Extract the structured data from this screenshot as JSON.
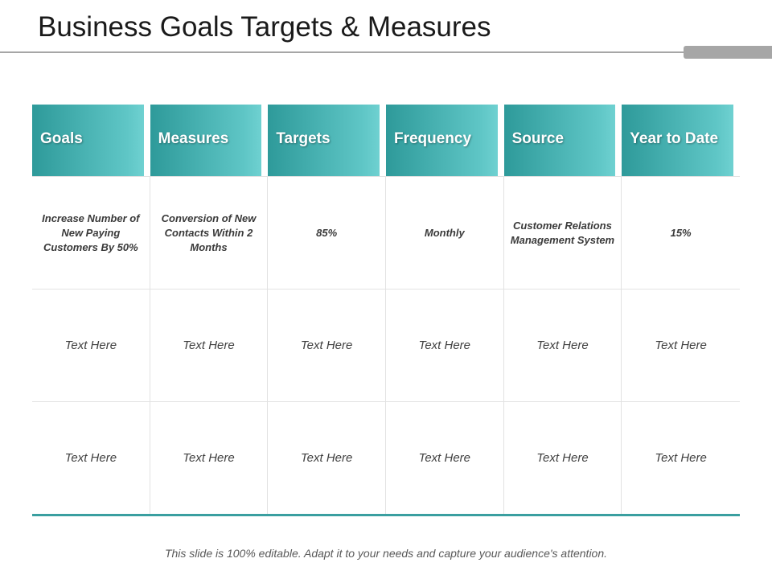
{
  "slide": {
    "title": "Business Goals Targets & Measures",
    "footer": "This slide is 100% editable. Adapt it to your needs and capture your audience's attention."
  },
  "colors": {
    "header_gradient_start": "#2e9a9a",
    "header_gradient_end": "#6fd1d1",
    "bottom_rule": "#3a9fa0",
    "title_rule": "#a6a6a6"
  },
  "table": {
    "headers": [
      "Goals",
      "Measures",
      "Targets",
      "Frequency",
      "Source",
      "Year to Date"
    ],
    "rows": [
      [
        "Increase Number of New Paying Customers By 50%",
        "Conversion of New Contacts Within 2 Months",
        "85%",
        "Monthly",
        "Customer Relations Management System",
        "15%"
      ],
      [
        "Text Here",
        "Text Here",
        "Text Here",
        "Text Here",
        "Text Here",
        "Text Here"
      ],
      [
        "Text Here",
        "Text Here",
        "Text Here",
        "Text Here",
        "Text Here",
        "Text Here"
      ]
    ]
  }
}
